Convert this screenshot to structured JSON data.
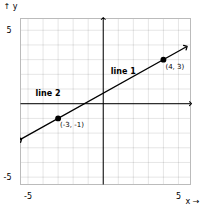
{
  "chart_data": {
    "type": "line",
    "xlabel": "x",
    "ylabel": "y",
    "xlim": [
      -5.5,
      5.8
    ],
    "ylim": [
      -5.5,
      5.8
    ],
    "xticks": [
      -5,
      {
        "value": -4,
        "label": null
      },
      {
        "value": -3,
        "label": null
      },
      {
        "value": -2,
        "label": null
      },
      {
        "value": -1,
        "label": null
      },
      {
        "value": 0,
        "label": null
      },
      {
        "value": 1,
        "label": null
      },
      {
        "value": 2,
        "label": null
      },
      {
        "value": 3,
        "label": null
      },
      {
        "value": 4,
        "label": null
      },
      5
    ],
    "yticks": [
      -5,
      {
        "value": -4,
        "label": null
      },
      {
        "value": -3,
        "label": null
      },
      {
        "value": -2,
        "label": null
      },
      {
        "value": -1,
        "label": null
      },
      {
        "value": 0,
        "label": null
      },
      {
        "value": 1,
        "label": null
      },
      {
        "value": 2,
        "label": null
      },
      {
        "value": 3,
        "label": null
      },
      {
        "value": 4,
        "label": null
      },
      5
    ],
    "grid": true,
    "series": [
      {
        "type": "line",
        "color": "#000000",
        "x": [
          -5.5,
          5.5
        ],
        "values": [
          -2.428571428571429,
          3.857142857142857
        ]
      },
      {
        "type": "scatter",
        "color": "#000000",
        "marker": "circle",
        "x": [
          -3,
          4
        ],
        "values": [
          -1,
          3
        ],
        "data_labels": true,
        "value_labels": [
          "(-3, -1)",
          "(4, 3)"
        ]
      }
    ],
    "annotations": [
      {
        "text": "line 1",
        "x": 0.5,
        "y": 2.0
      },
      {
        "text": "line 2",
        "x": -4.5,
        "y": 0.55
      }
    ]
  }
}
